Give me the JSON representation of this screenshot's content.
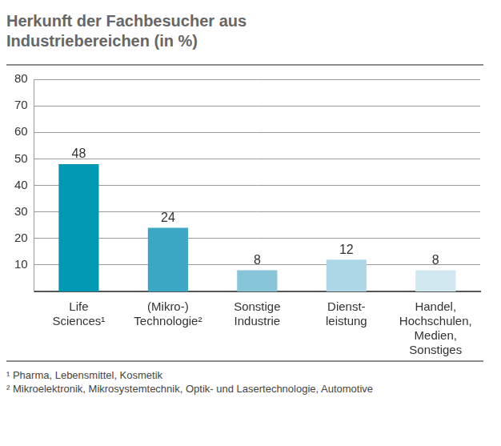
{
  "chart_data": {
    "type": "bar",
    "title": "Herkunft der Fachbesucher aus\nIndustriebereichen (in %)",
    "categories": [
      "Life\nSciences¹",
      "(Mikro-)\nTechnologie²",
      "Sonstige\nIndustrie",
      "Dienst-\nleistung",
      "Handel,\nHochschulen,\nMedien,\nSonstiges"
    ],
    "values": [
      48,
      24,
      8,
      12,
      8
    ],
    "colors": [
      "#0098b3",
      "#3ca7c4",
      "#86c4d8",
      "#acd7e6",
      "#d0e7f0"
    ],
    "ylim": [
      0,
      80
    ],
    "yticks": [
      10,
      20,
      30,
      40,
      50,
      60,
      70,
      80
    ],
    "grid": true,
    "data_labels": true,
    "notes": [
      "¹ Pharma, Lebensmittel, Kosmetik",
      "² Mikroelektronik, Mikrosystemtechnik, Optik- und Lasertechnologie, Automotive"
    ]
  }
}
